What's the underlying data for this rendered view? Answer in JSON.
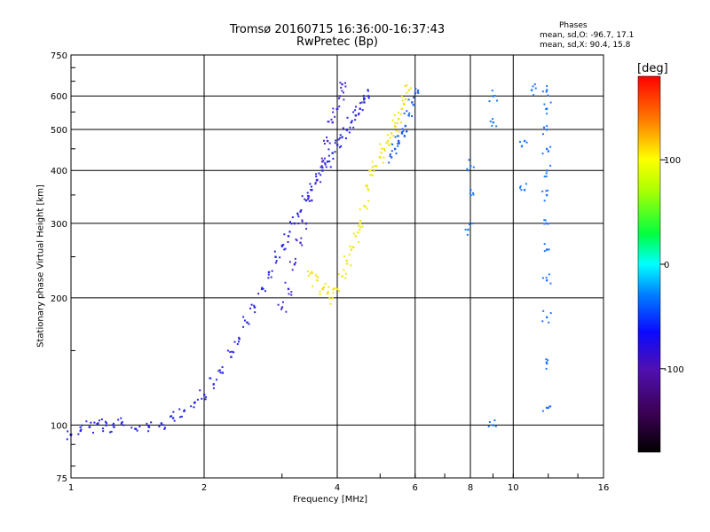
{
  "title_line1": "Tromsø 20160715 16:36:00-16:37:43",
  "title_line2": "RwPretec (Bp)",
  "phases": {
    "heading": "Phases",
    "o_stats": "mean, sd,O: -96.7, 17.1",
    "x_stats": "mean, sd,X:  90.4, 15.8"
  },
  "chart_data": {
    "type": "scatter",
    "title": "Tromsø 20160715 16:36:00-16:37:43",
    "subtitle": "RwPretec (Bp)",
    "xlabel": "Frequency [MHz]",
    "ylabel": "Stationary phase Virtual Height [km]",
    "x_scale": "log",
    "y_scale": "log",
    "xlim": [
      1,
      16
    ],
    "ylim": [
      75,
      750
    ],
    "x_ticks": [
      "1",
      "2",
      "4",
      "6",
      "8",
      "10",
      "16"
    ],
    "x_tick_values": [
      1,
      2,
      4,
      6,
      8,
      10,
      16
    ],
    "y_ticks": [
      "75",
      "100",
      "200",
      "300",
      "400",
      "500",
      "600",
      "750"
    ],
    "y_tick_values": [
      75,
      100,
      200,
      300,
      400,
      500,
      600,
      750
    ],
    "grid": true,
    "colorbar": {
      "label": "[deg]",
      "ticks": [
        "100",
        "0",
        "-100"
      ],
      "tick_values": [
        100,
        0,
        -100
      ],
      "range": [
        -180,
        180
      ]
    },
    "series": [
      {
        "mode": "O",
        "phase_deg": -95,
        "color": "#2828e6",
        "points": [
          [
            1.0,
            95
          ],
          [
            1.05,
            97
          ],
          [
            1.1,
            99
          ],
          [
            1.15,
            101
          ],
          [
            1.2,
            100
          ],
          [
            1.25,
            99
          ],
          [
            1.3,
            101
          ],
          [
            1.4,
            98
          ],
          [
            1.5,
            99
          ],
          [
            1.6,
            101
          ],
          [
            1.7,
            104
          ],
          [
            1.8,
            108
          ],
          [
            1.9,
            113
          ],
          [
            2.0,
            118
          ],
          [
            2.1,
            125
          ],
          [
            2.2,
            133
          ],
          [
            2.3,
            145
          ],
          [
            2.4,
            160
          ],
          [
            2.5,
            175
          ],
          [
            2.6,
            190
          ],
          [
            2.7,
            210
          ],
          [
            2.8,
            230
          ],
          [
            2.9,
            250
          ],
          [
            3.0,
            265
          ],
          [
            3.1,
            280
          ],
          [
            3.2,
            300
          ],
          [
            3.3,
            320
          ],
          [
            3.4,
            340
          ],
          [
            3.5,
            360
          ],
          [
            3.6,
            380
          ],
          [
            3.7,
            400
          ],
          [
            3.8,
            420
          ],
          [
            3.9,
            440
          ],
          [
            4.0,
            460
          ],
          [
            4.1,
            480
          ],
          [
            4.2,
            500
          ],
          [
            4.3,
            520
          ],
          [
            4.4,
            540
          ],
          [
            4.5,
            560
          ],
          [
            4.6,
            580
          ],
          [
            4.7,
            600
          ]
        ]
      },
      {
        "mode": "O-spread",
        "phase_deg": -110,
        "color": "#4a2ad8",
        "points": [
          [
            3.0,
            190
          ],
          [
            3.1,
            210
          ],
          [
            3.2,
            240
          ],
          [
            3.3,
            270
          ],
          [
            3.4,
            300
          ],
          [
            3.5,
            340
          ],
          [
            3.6,
            380
          ],
          [
            3.7,
            420
          ],
          [
            3.8,
            470
          ],
          [
            3.9,
            520
          ],
          [
            4.0,
            560
          ],
          [
            4.05,
            600
          ],
          [
            4.1,
            640
          ]
        ]
      },
      {
        "mode": "X",
        "phase_deg": 90,
        "color": "#f0e614",
        "points": [
          [
            3.5,
            230
          ],
          [
            3.6,
            220
          ],
          [
            3.7,
            210
          ],
          [
            3.8,
            205
          ],
          [
            3.9,
            200
          ],
          [
            4.0,
            210
          ],
          [
            4.1,
            225
          ],
          [
            4.2,
            245
          ],
          [
            4.3,
            260
          ],
          [
            4.4,
            280
          ],
          [
            4.5,
            300
          ],
          [
            4.6,
            330
          ],
          [
            4.7,
            360
          ],
          [
            4.8,
            390
          ],
          [
            4.9,
            410
          ],
          [
            5.0,
            430
          ],
          [
            5.1,
            450
          ],
          [
            5.2,
            470
          ],
          [
            5.3,
            490
          ],
          [
            5.4,
            510
          ],
          [
            5.5,
            530
          ],
          [
            5.6,
            560
          ],
          [
            5.7,
            590
          ],
          [
            5.8,
            620
          ]
        ]
      },
      {
        "mode": "O-upper",
        "phase_deg": -90,
        "color": "#1f5ff0",
        "points": [
          [
            5.3,
            430
          ],
          [
            5.4,
            450
          ],
          [
            5.5,
            470
          ],
          [
            5.6,
            490
          ],
          [
            5.7,
            510
          ],
          [
            5.8,
            540
          ],
          [
            5.9,
            580
          ],
          [
            6.0,
            610
          ]
        ]
      },
      {
        "mode": "sporadic",
        "phase_deg": -80,
        "color": "#1e78ff",
        "points": [
          [
            11.9,
            110
          ],
          [
            11.9,
            140
          ],
          [
            11.9,
            180
          ],
          [
            11.9,
            220
          ],
          [
            11.9,
            260
          ],
          [
            11.9,
            300
          ],
          [
            11.9,
            350
          ],
          [
            11.9,
            400
          ],
          [
            11.9,
            450
          ],
          [
            11.9,
            500
          ],
          [
            11.9,
            560
          ],
          [
            11.9,
            620
          ],
          [
            9.0,
            100
          ],
          [
            9.0,
            600
          ],
          [
            9.0,
            520
          ],
          [
            8.0,
            410
          ],
          [
            8.0,
            360
          ],
          [
            7.9,
            290
          ],
          [
            10.6,
            470
          ],
          [
            10.6,
            360
          ],
          [
            11.0,
            620
          ]
        ]
      }
    ]
  }
}
